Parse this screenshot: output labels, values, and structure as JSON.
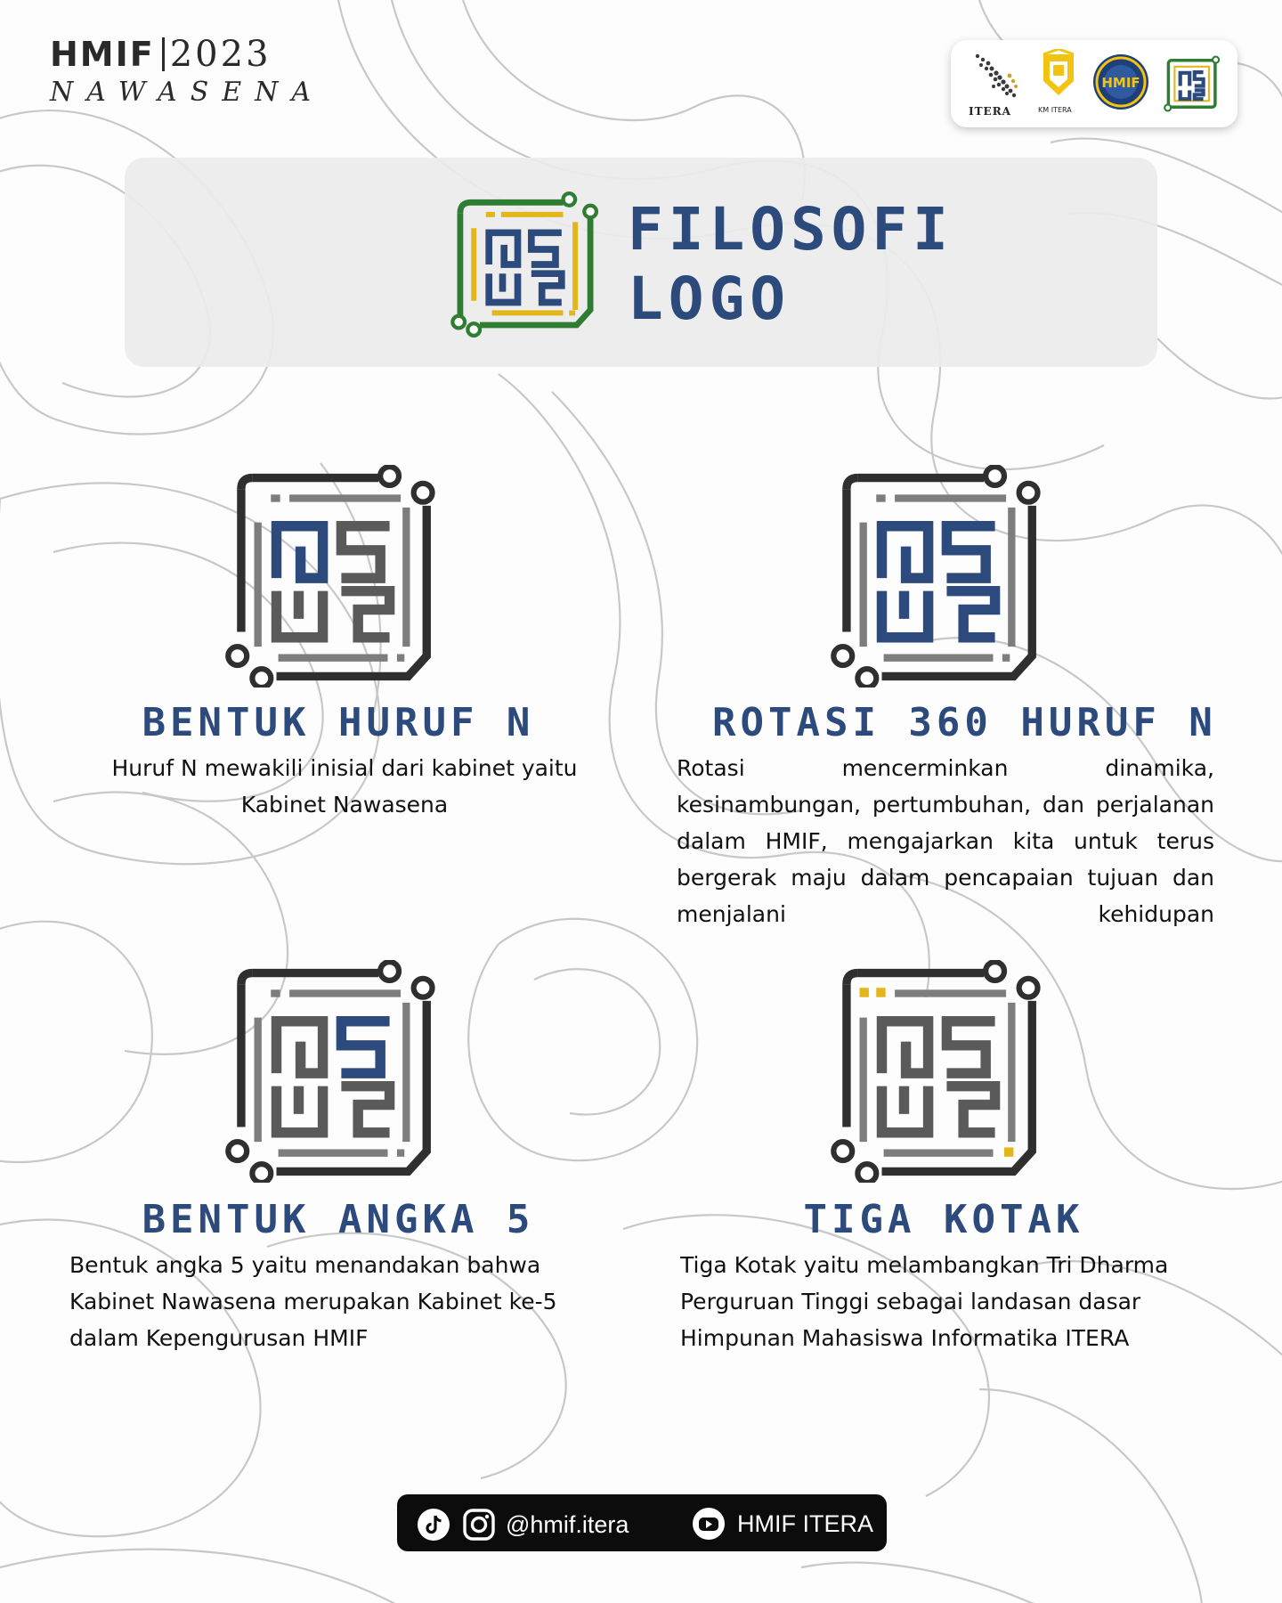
{
  "header": {
    "brand_name": "HMIF",
    "brand_year": "2023",
    "brand_subtitle": "NAWASENA"
  },
  "partners": [
    {
      "name": "ITERA",
      "icon": "itera-logo-icon"
    },
    {
      "name": "KM ITERA",
      "icon": "km-itera-logo-icon"
    },
    {
      "name": "HMIF",
      "icon": "hmif-seal-icon"
    },
    {
      "name": "Nawasena",
      "icon": "nawasena-logo-icon"
    }
  ],
  "title": {
    "line1": "FILOSOFI",
    "line2": "LOGO"
  },
  "sections": [
    {
      "heading": "BENTUK HURUF N",
      "body": "Huruf N mewakili inisial dari kabinet yaitu Kabinet Nawasena"
    },
    {
      "heading": "ROTASI 360 HURUF N",
      "body": "Rotasi mencerminkan dinamika, kesinambungan, pertumbuhan, dan perjalanan dalam HMIF, mengajarkan kita untuk terus bergerak maju dalam pencapaian tujuan dan menjalani kehidupan"
    },
    {
      "heading": "BENTUK ANGKA 5",
      "body": "Bentuk angka 5 yaitu menandakan bahwa Kabinet Nawasena merupakan Kabinet ke-5 dalam Kepengurusan HMIF"
    },
    {
      "heading": "TIGA KOTAK",
      "body": "Tiga Kotak yaitu melambangkan Tri Dharma Perguruan Tinggi sebagai landasan dasar Himpunan Mahasiswa Informatika ITERA"
    }
  ],
  "footer": {
    "handle": "@hmif.itera",
    "youtube": "HMIF ITERA"
  },
  "colors": {
    "navy": "#2d4a7c",
    "frame": "#2f2f2f",
    "gray": "#7d7d7d",
    "green": "#2e7d32",
    "gold": "#e3b61c"
  }
}
